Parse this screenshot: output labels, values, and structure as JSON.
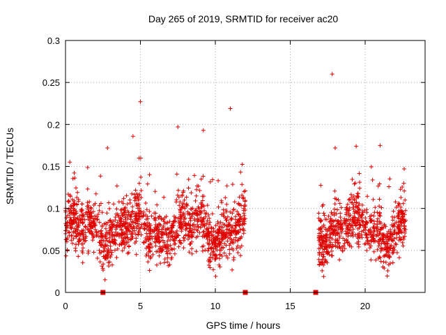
{
  "chart_data": {
    "type": "scatter",
    "title": "Day 265 of 2019, SRMTID for receiver ac20",
    "xlabel": "GPS time / hours",
    "ylabel": "SRMTID / TECUs",
    "xlim": [
      0,
      24
    ],
    "ylim": [
      0,
      0.3
    ],
    "xticks": [
      0,
      5,
      10,
      15,
      20
    ],
    "xtick_labels": [
      "0",
      "5",
      "10",
      "15",
      "20"
    ],
    "yticks": [
      0,
      0.05,
      0.1,
      0.15,
      0.2,
      0.25,
      0.3
    ],
    "ytick_labels": [
      "0",
      "0.05",
      "0.1",
      "0.15",
      "0.2",
      "0.25",
      "0.3"
    ],
    "grid": true,
    "color": "#e00000",
    "series": [
      {
        "name": "SRMTID",
        "marker": "plus",
        "segments": [
          {
            "x_start": 0.0,
            "x_end": 12.0,
            "points": 1400
          },
          {
            "x_start": 16.9,
            "x_end": 22.7,
            "points": 700
          }
        ],
        "typical_range": [
          0.02,
          0.13
        ],
        "notable_points": [
          {
            "x": 5.0,
            "y": 0.227
          },
          {
            "x": 11.0,
            "y": 0.219
          },
          {
            "x": 7.5,
            "y": 0.197
          },
          {
            "x": 9.2,
            "y": 0.193
          },
          {
            "x": 4.5,
            "y": 0.186
          },
          {
            "x": 17.8,
            "y": 0.26
          },
          {
            "x": 19.4,
            "y": 0.174
          },
          {
            "x": 21.0,
            "y": 0.175
          },
          {
            "x": 18.0,
            "y": 0.172
          },
          {
            "x": 2.8,
            "y": 0.172
          }
        ]
      },
      {
        "name": "markers",
        "marker": "square",
        "x": [
          2.5,
          12.0,
          16.7
        ],
        "y": [
          0,
          0,
          0
        ]
      }
    ]
  }
}
